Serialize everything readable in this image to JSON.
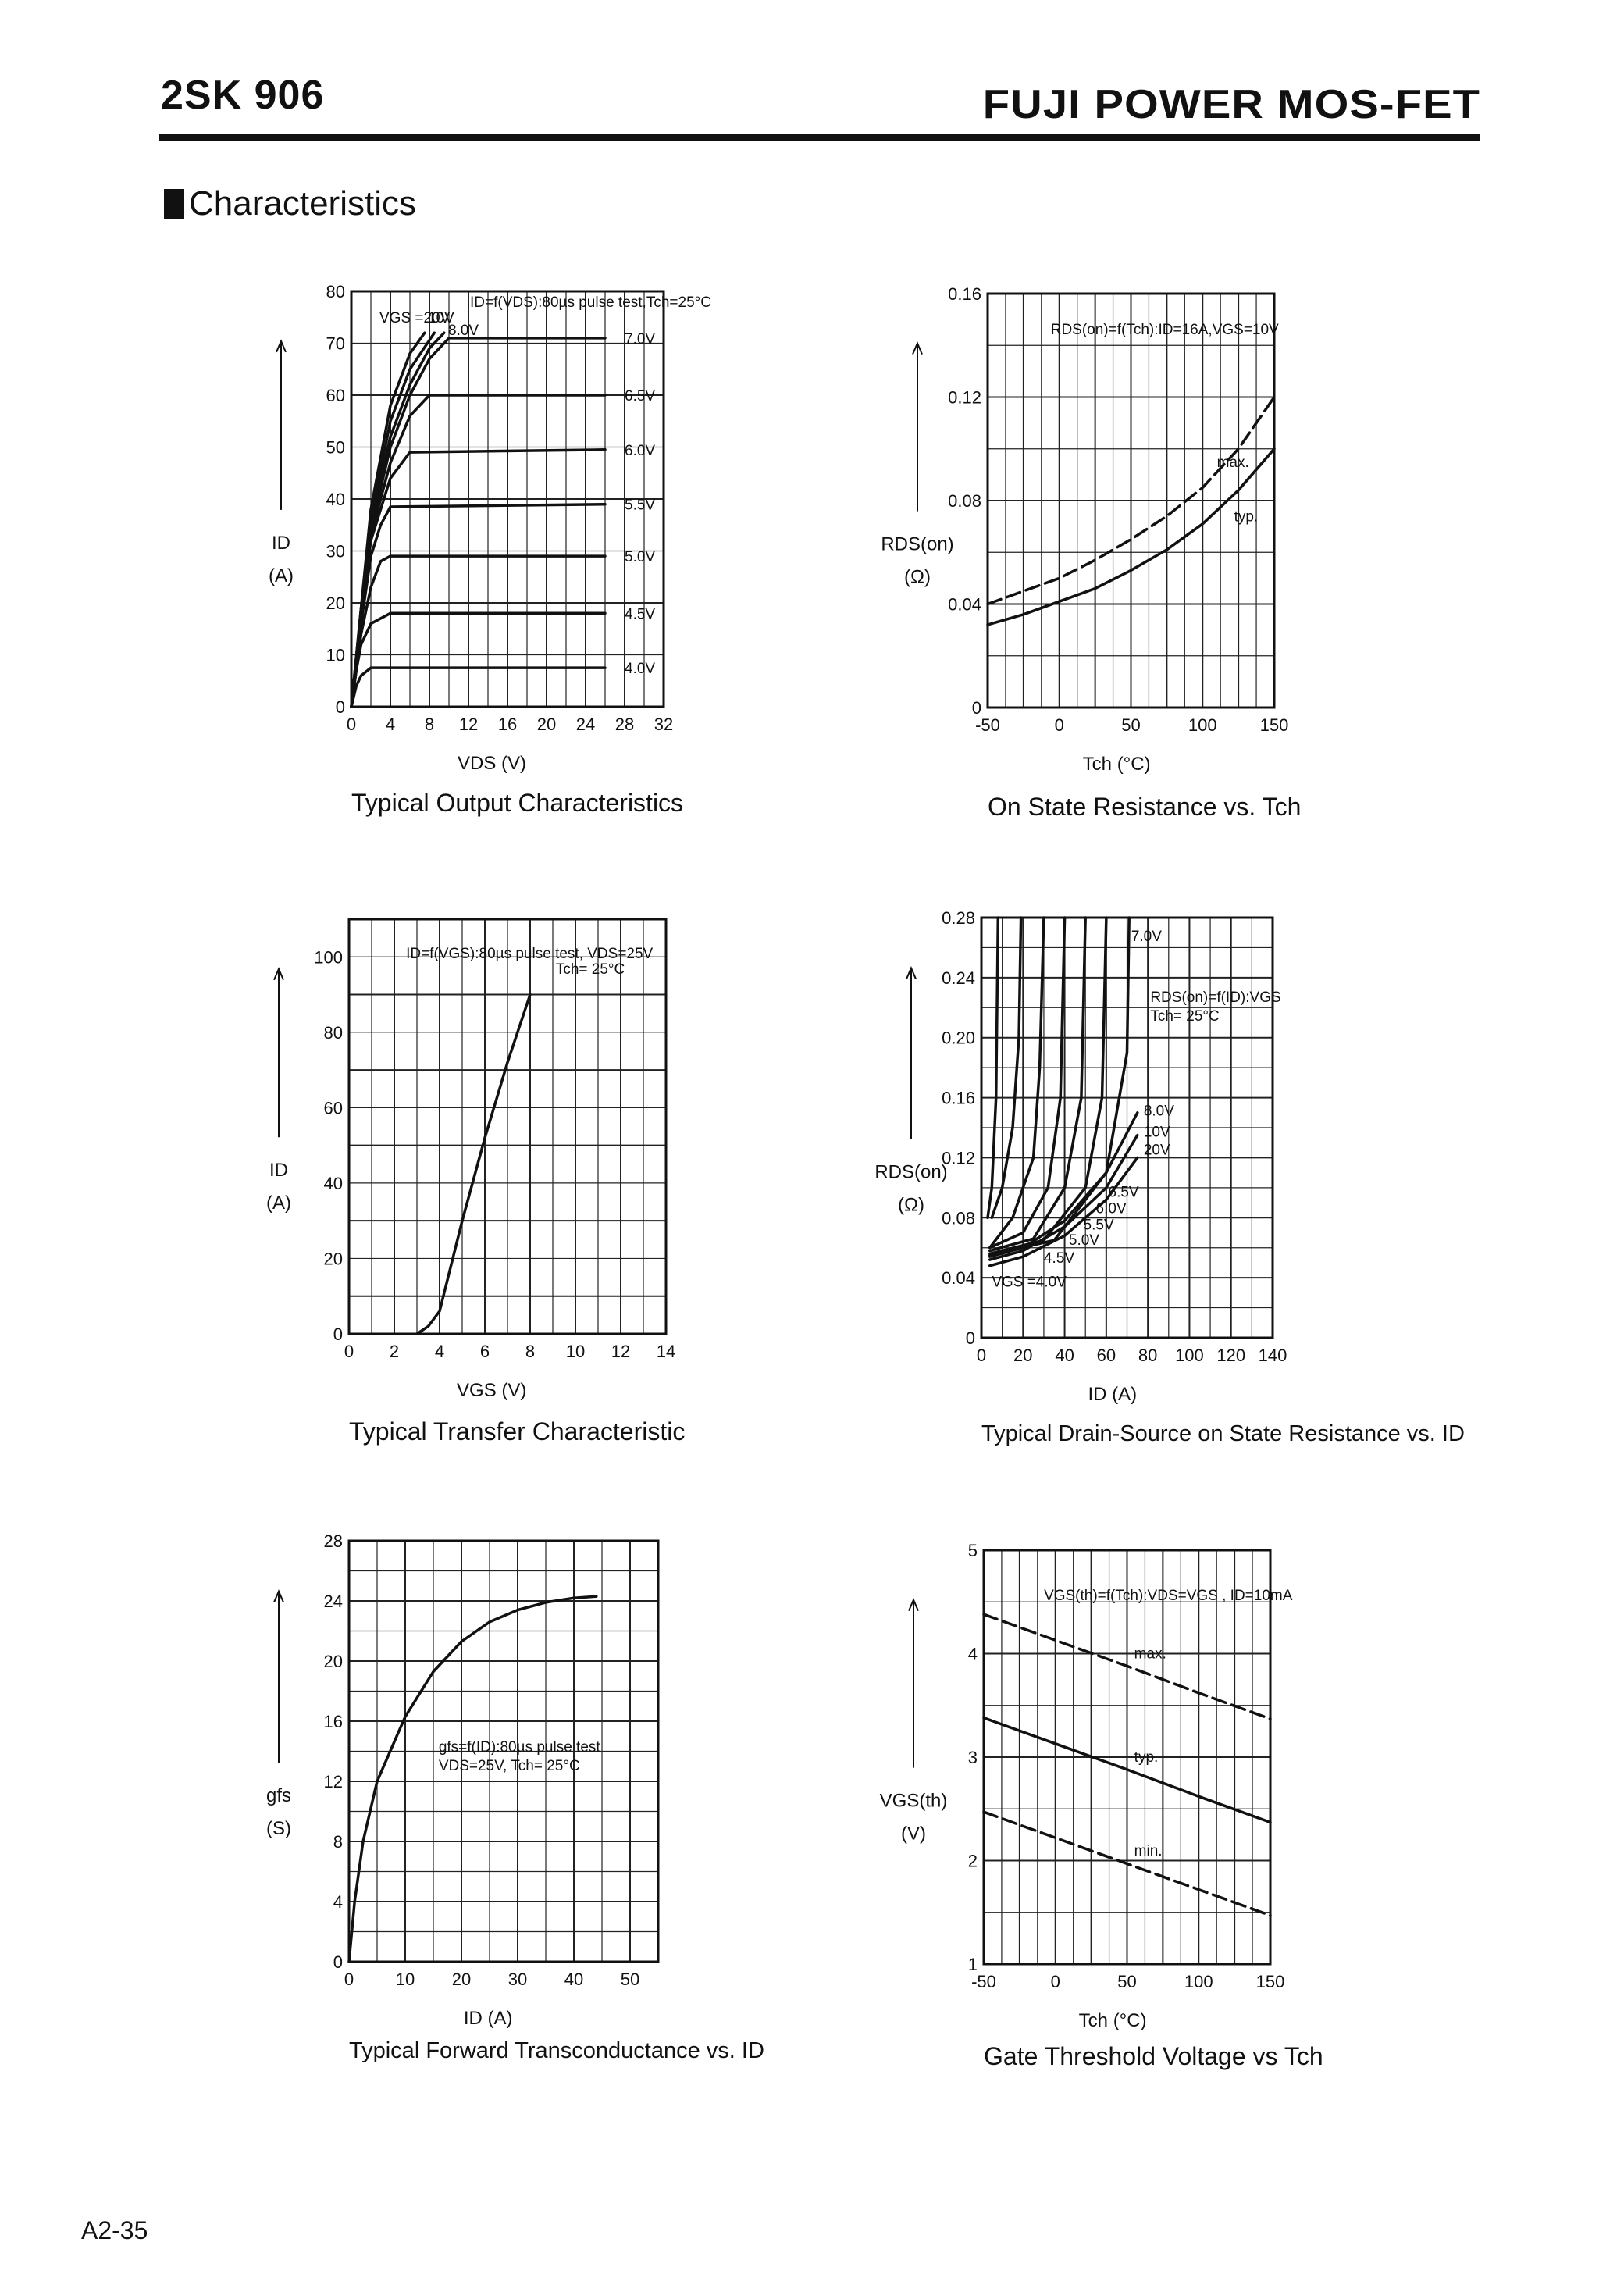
{
  "header": {
    "part_number": "2SK 906",
    "title": "FUJI POWER MOS-FET"
  },
  "section": {
    "title": "Characteristics"
  },
  "footer": {
    "page": "A2-35"
  },
  "charts": {
    "c1": {
      "caption": "Typical Output Characteristics",
      "annotation": "ID=f(VDS):80µs pulse test,Tch=25°C",
      "ylabel": "ID",
      "yunit": "(A)",
      "xlabel": "VDS (V)",
      "xticks": [
        "0",
        "4",
        "8",
        "12",
        "16",
        "20",
        "24",
        "28",
        "32"
      ],
      "yticks": [
        "0",
        "10",
        "20",
        "30",
        "40",
        "50",
        "60",
        "70",
        "80"
      ],
      "vgs_prefix": "VGS =20V",
      "labels": [
        "10V",
        "8.0V",
        "7.0V",
        "6.5V",
        "6.0V",
        "5.5V",
        "5.0V",
        "4.5V",
        "4.0V"
      ]
    },
    "c2": {
      "caption": "On State Resistance vs. Tch",
      "annotation": "RDS(on)=f(Tch):ID=16A,VGS=10V",
      "ylabel": "RDS(on)",
      "yunit": "(Ω)",
      "xlabel": "Tch (°C)",
      "xticks": [
        "-50",
        "0",
        "50",
        "100",
        "150"
      ],
      "yticks": [
        "0",
        "0.04",
        "0.08",
        "0.12",
        "0.16"
      ],
      "labels": [
        "max.",
        "typ."
      ]
    },
    "c3": {
      "caption": "Typical Transfer Characteristic",
      "annotation": "ID=f(VGS):80µs pulse test, VDS=25V",
      "annotation2": "Tch= 25°C",
      "ylabel": "ID",
      "yunit": "(A)",
      "xlabel": "VGS (V)",
      "xticks": [
        "0",
        "2",
        "4",
        "6",
        "8",
        "10",
        "12",
        "14"
      ],
      "yticks": [
        "0",
        "20",
        "40",
        "60",
        "80",
        "100"
      ]
    },
    "c4": {
      "caption": "Typical Drain-Source on State Resistance vs. ID",
      "annotation": "RDS(on)=f(ID):VGS",
      "annotation2": "Tch= 25°C",
      "ylabel": "RDS(on)",
      "yunit": "(Ω)",
      "xlabel": "ID (A)",
      "xticks": [
        "0",
        "20",
        "40",
        "60",
        "80",
        "100",
        "120",
        "140"
      ],
      "yticks": [
        "0",
        "0.04",
        "0.08",
        "0.12",
        "0.16",
        "0.20",
        "0.24",
        "0.28"
      ],
      "labels": [
        "7.0V",
        "8.0V",
        "10V",
        "20V",
        "6.5V",
        "6.0V",
        "5.5V",
        "5.0V",
        "4.5V",
        "VGS =4.0V"
      ]
    },
    "c5": {
      "caption": "Typical Forward Transconductance vs. ID",
      "annotation": "gfs=f(ID):80µs pulse test",
      "annotation2": "VDS=25V, Tch= 25°C",
      "ylabel": "gfs",
      "yunit": "(S)",
      "xlabel": "ID (A)",
      "xticks": [
        "0",
        "10",
        "20",
        "30",
        "40",
        "50"
      ],
      "yticks": [
        "0",
        "4",
        "8",
        "12",
        "16",
        "20",
        "24",
        "28"
      ]
    },
    "c6": {
      "caption": "Gate Threshold Voltage vs Tch",
      "annotation": "VGS(th)=f(Tch):VDS=VGS , ID=10mA",
      "ylabel": "VGS(th)",
      "yunit": "(V)",
      "xlabel": "Tch (°C)",
      "xticks": [
        "-50",
        "0",
        "50",
        "100",
        "150"
      ],
      "yticks": [
        "1",
        "2",
        "3",
        "4",
        "5"
      ],
      "labels": [
        "max.",
        "typ.",
        "min."
      ]
    }
  },
  "chart_data": [
    {
      "type": "line",
      "title": "Typical Output Characteristics",
      "xlabel": "VDS (V)",
      "ylabel": "ID (A)",
      "xlim": [
        0,
        32
      ],
      "ylim": [
        0,
        80
      ],
      "grid": true,
      "annotation": "ID=f(VDS):80µs pulse test, Tch=25°C",
      "series": [
        {
          "name": "VGS=4.0V",
          "x": [
            0,
            0.5,
            1,
            2,
            4,
            26
          ],
          "values": [
            0,
            4,
            6,
            7.5,
            7.5,
            7.5
          ]
        },
        {
          "name": "VGS=4.5V",
          "x": [
            0,
            0.5,
            1,
            2,
            4,
            26
          ],
          "values": [
            0,
            7,
            12,
            16,
            18,
            18
          ]
        },
        {
          "name": "VGS=5.0V",
          "x": [
            0,
            1,
            2,
            3,
            4,
            26
          ],
          "values": [
            0,
            14,
            23,
            28,
            29,
            29
          ]
        },
        {
          "name": "VGS=5.5V",
          "x": [
            0,
            1,
            2,
            3,
            4,
            26
          ],
          "values": [
            0,
            16,
            29,
            35,
            38.5,
            39
          ]
        },
        {
          "name": "VGS=6.0V",
          "x": [
            0,
            1,
            2,
            4,
            6,
            26
          ],
          "values": [
            0,
            18,
            32,
            44,
            49,
            49.5
          ]
        },
        {
          "name": "VGS=6.5V",
          "x": [
            0,
            1,
            2,
            4,
            6,
            8,
            26
          ],
          "values": [
            0,
            18,
            33,
            47,
            56,
            60,
            60
          ]
        },
        {
          "name": "VGS=7.0V",
          "x": [
            0,
            1,
            2,
            4,
            6,
            8,
            10,
            26
          ],
          "values": [
            0,
            19,
            34,
            50,
            60,
            67,
            71,
            71
          ]
        },
        {
          "name": "VGS=8.0V",
          "x": [
            0,
            2,
            4,
            6,
            8,
            9.5
          ],
          "values": [
            0,
            35,
            52,
            62,
            69,
            72
          ]
        },
        {
          "name": "VGS=10V",
          "x": [
            0,
            2,
            4,
            6,
            8.5
          ],
          "values": [
            0,
            36,
            55,
            65,
            72
          ]
        },
        {
          "name": "VGS=20V",
          "x": [
            0,
            2,
            4,
            6,
            7.5
          ],
          "values": [
            0,
            38,
            58,
            68,
            72
          ]
        }
      ]
    },
    {
      "type": "line",
      "title": "On State Resistance vs. Tch",
      "xlabel": "Tch (°C)",
      "ylabel": "RDS(on) (Ω)",
      "xlim": [
        -50,
        150
      ],
      "ylim": [
        0,
        0.16
      ],
      "grid": true,
      "annotation": "RDS(on)=f(Tch):ID=16A, VGS=10V",
      "x": [
        -50,
        -25,
        0,
        25,
        50,
        75,
        100,
        125,
        150
      ],
      "series": [
        {
          "name": "max.",
          "values": [
            0.04,
            0.045,
            0.05,
            0.057,
            0.065,
            0.074,
            0.085,
            0.1,
            0.12
          ]
        },
        {
          "name": "typ.",
          "values": [
            0.032,
            0.036,
            0.041,
            0.046,
            0.053,
            0.061,
            0.071,
            0.084,
            0.1
          ]
        }
      ]
    },
    {
      "type": "line",
      "title": "Typical Transfer Characteristic",
      "xlabel": "VGS (V)",
      "ylabel": "ID (A)",
      "xlim": [
        0,
        14
      ],
      "ylim": [
        0,
        110
      ],
      "grid": true,
      "annotation": "ID=f(VGS):80µs pulse test, VDS=25V, Tch=25°C",
      "series": [
        {
          "name": "ID",
          "x": [
            3.0,
            3.5,
            4.0,
            5.0,
            6.0,
            7.0,
            8.0
          ],
          "values": [
            0,
            2,
            6,
            30,
            52,
            72,
            90
          ]
        }
      ]
    },
    {
      "type": "line",
      "title": "Typical Drain-Source on State Resistance vs. ID",
      "xlabel": "ID (A)",
      "ylabel": "RDS(on) (Ω)",
      "xlim": [
        0,
        140
      ],
      "ylim": [
        0,
        0.28
      ],
      "grid": true,
      "annotation": "RDS(on)=f(ID):VGS, Tch=25°C",
      "series": [
        {
          "name": "VGS=4.0V",
          "x": [
            3,
            5,
            7,
            8
          ],
          "values": [
            0.08,
            0.1,
            0.16,
            0.28
          ]
        },
        {
          "name": "VGS=4.5V",
          "x": [
            5,
            10,
            15,
            18,
            19
          ],
          "values": [
            0.08,
            0.1,
            0.14,
            0.2,
            0.28
          ]
        },
        {
          "name": "VGS=5.0V",
          "x": [
            4,
            15,
            25,
            28,
            30
          ],
          "values": [
            0.06,
            0.08,
            0.12,
            0.18,
            0.28
          ]
        },
        {
          "name": "VGS=5.5V",
          "x": [
            4,
            20,
            32,
            38,
            40
          ],
          "values": [
            0.06,
            0.07,
            0.1,
            0.16,
            0.28
          ]
        },
        {
          "name": "VGS=6.0V",
          "x": [
            4,
            25,
            40,
            48,
            50
          ],
          "values": [
            0.058,
            0.066,
            0.1,
            0.16,
            0.28
          ]
        },
        {
          "name": "VGS=6.5V",
          "x": [
            4,
            30,
            50,
            58,
            60
          ],
          "values": [
            0.056,
            0.065,
            0.1,
            0.16,
            0.28
          ]
        },
        {
          "name": "VGS=7.0V",
          "x": [
            4,
            35,
            60,
            70,
            71
          ],
          "values": [
            0.055,
            0.065,
            0.11,
            0.19,
            0.28
          ]
        },
        {
          "name": "VGS=8.0V",
          "x": [
            4,
            20,
            40,
            60,
            75
          ],
          "values": [
            0.054,
            0.06,
            0.078,
            0.11,
            0.15
          ]
        },
        {
          "name": "VGS=10V",
          "x": [
            4,
            20,
            40,
            60,
            75
          ],
          "values": [
            0.052,
            0.058,
            0.074,
            0.1,
            0.135
          ]
        },
        {
          "name": "VGS=20V",
          "x": [
            4,
            20,
            40,
            60,
            75
          ],
          "values": [
            0.048,
            0.054,
            0.068,
            0.092,
            0.12
          ]
        }
      ]
    },
    {
      "type": "line",
      "title": "Typical Forward Transconductance vs. ID",
      "xlabel": "ID (A)",
      "ylabel": "gfs (S)",
      "xlim": [
        0,
        55
      ],
      "ylim": [
        0,
        28
      ],
      "grid": true,
      "annotation": "gfs=f(ID):80µs pulse test, VDS=25V, Tch=25°C",
      "series": [
        {
          "name": "gfs",
          "x": [
            0,
            1,
            2.5,
            5,
            10,
            15,
            20,
            25,
            30,
            35,
            40,
            44
          ],
          "values": [
            0,
            4,
            8,
            12,
            16.3,
            19.3,
            21.3,
            22.6,
            23.4,
            23.9,
            24.2,
            24.3
          ]
        }
      ]
    },
    {
      "type": "line",
      "title": "Gate Threshold Voltage vs Tch",
      "xlabel": "Tch (°C)",
      "ylabel": "VGS(th) (V)",
      "xlim": [
        -50,
        150
      ],
      "ylim": [
        1,
        5
      ],
      "grid": true,
      "annotation": "VGS(th)=f(Tch):VDS=VGS, ID=10mA",
      "x": [
        -50,
        0,
        50,
        100,
        150
      ],
      "series": [
        {
          "name": "max.",
          "values": [
            4.38,
            4.13,
            3.88,
            3.62,
            3.37
          ]
        },
        {
          "name": "typ.",
          "values": [
            3.38,
            3.13,
            2.88,
            2.62,
            2.37
          ]
        },
        {
          "name": "min.",
          "values": [
            2.47,
            2.22,
            1.97,
            1.72,
            1.47
          ]
        }
      ]
    }
  ]
}
